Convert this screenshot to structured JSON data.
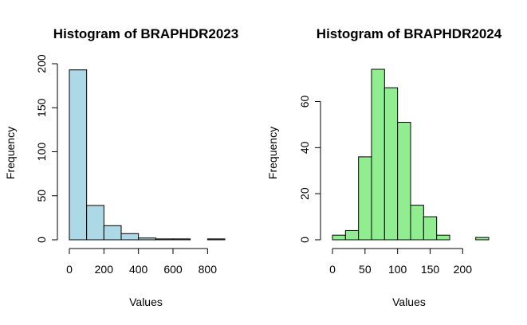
{
  "chart_data": [
    {
      "type": "bar",
      "title": "Histogram of BRAPHDR2023",
      "xlabel": "Values",
      "ylabel": "Frequency",
      "bin_edges": [
        0,
        100,
        200,
        300,
        400,
        500,
        600,
        700,
        800,
        900
      ],
      "values": [
        193,
        39,
        16,
        7,
        2,
        1,
        1,
        0,
        1
      ],
      "xlim": [
        0,
        900
      ],
      "ylim": [
        0,
        200
      ],
      "xticks": [
        0,
        200,
        400,
        600,
        800
      ],
      "yticks": [
        0,
        50,
        100,
        150,
        200
      ],
      "grid": false,
      "colors": {
        "fill": "#ADD8E6",
        "stroke": "#000000"
      }
    },
    {
      "type": "bar",
      "title": "Histogram of BRAPHDR2024",
      "xlabel": "Values",
      "ylabel": "Frequency",
      "bin_edges": [
        0,
        20,
        40,
        60,
        80,
        100,
        120,
        140,
        160,
        180,
        200,
        220,
        240
      ],
      "values": [
        2,
        4,
        36,
        74,
        66,
        51,
        15,
        10,
        2,
        0,
        0,
        1
      ],
      "xlim": [
        0,
        240
      ],
      "ylim": [
        0,
        74
      ],
      "xticks": [
        0,
        50,
        100,
        150,
        200
      ],
      "yticks": [
        0,
        20,
        40,
        60
      ],
      "grid": false,
      "colors": {
        "fill": "#90EE90",
        "stroke": "#000000"
      }
    }
  ]
}
